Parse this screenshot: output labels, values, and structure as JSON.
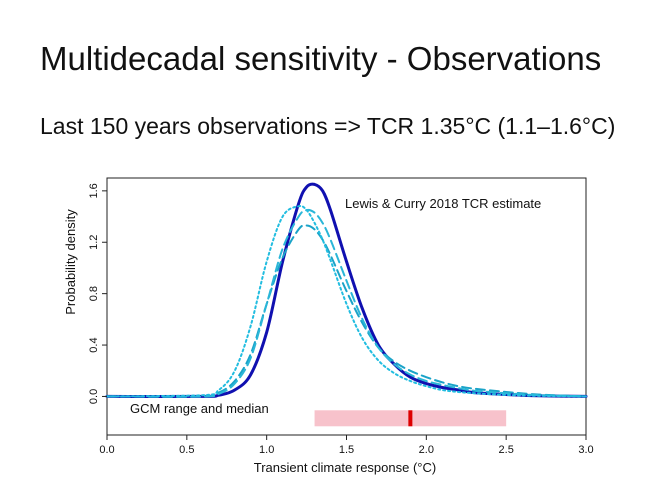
{
  "slide": {
    "title": "Multidecadal sensitivity - Observations",
    "subtitle": "Last 150 years observations => TCR 1.35°C (1.1–1.6°C)"
  },
  "chart_data": {
    "type": "line",
    "xlabel": "Transient climate response (°C)",
    "ylabel": "Probability density",
    "xlim": [
      0,
      3
    ],
    "ylim": [
      -0.3,
      1.7
    ],
    "x_ticks": [
      "0.0",
      "0.5",
      "1.0",
      "1.5",
      "2.0",
      "2.5",
      "3.0"
    ],
    "y_ticks": [
      "0.0",
      "0.4",
      "0.8",
      "1.2",
      "1.6"
    ],
    "grid": false,
    "annotation": "Lewis & Curry 2018 TCR estimate",
    "series": [
      {
        "style": "solid",
        "color": "#1010b0",
        "x": [
          0.0,
          0.6,
          0.7,
          0.8,
          0.9,
          1.0,
          1.1,
          1.2,
          1.25,
          1.3,
          1.35,
          1.4,
          1.5,
          1.6,
          1.7,
          1.8,
          1.9,
          2.0,
          2.1,
          2.2,
          2.3,
          2.5,
          2.7,
          3.0
        ],
        "y": [
          0.0,
          0.0,
          0.01,
          0.05,
          0.17,
          0.5,
          1.05,
          1.5,
          1.63,
          1.65,
          1.6,
          1.45,
          1.05,
          0.68,
          0.4,
          0.25,
          0.15,
          0.1,
          0.07,
          0.05,
          0.03,
          0.015,
          0.005,
          0.0
        ]
      },
      {
        "style": "dashed",
        "color": "#1aa3c8",
        "x": [
          0.0,
          0.6,
          0.7,
          0.8,
          0.9,
          1.0,
          1.1,
          1.2,
          1.25,
          1.3,
          1.35,
          1.4,
          1.5,
          1.6,
          1.7,
          1.8,
          1.9,
          2.0,
          2.1,
          2.2,
          2.3,
          2.5,
          2.7,
          3.0
        ],
        "y": [
          0.0,
          0.0,
          0.03,
          0.12,
          0.33,
          0.72,
          1.08,
          1.3,
          1.33,
          1.3,
          1.22,
          1.1,
          0.82,
          0.57,
          0.38,
          0.27,
          0.2,
          0.15,
          0.11,
          0.08,
          0.06,
          0.035,
          0.015,
          0.0
        ]
      },
      {
        "style": "dashed",
        "color": "#2ab6d8",
        "x": [
          0.0,
          0.6,
          0.7,
          0.8,
          0.9,
          1.0,
          1.1,
          1.2,
          1.25,
          1.3,
          1.35,
          1.4,
          1.5,
          1.6,
          1.7,
          1.8,
          1.9,
          2.0,
          2.1,
          2.2,
          2.3,
          2.5,
          2.7,
          3.0
        ],
        "y": [
          0.0,
          0.0,
          0.02,
          0.1,
          0.3,
          0.72,
          1.15,
          1.4,
          1.45,
          1.43,
          1.35,
          1.22,
          0.9,
          0.6,
          0.38,
          0.25,
          0.17,
          0.12,
          0.09,
          0.065,
          0.045,
          0.025,
          0.01,
          0.0
        ]
      },
      {
        "style": "dotted",
        "color": "#22bde0",
        "x": [
          0.0,
          0.6,
          0.7,
          0.8,
          0.9,
          1.0,
          1.1,
          1.2,
          1.25,
          1.3,
          1.35,
          1.4,
          1.5,
          1.6,
          1.7,
          1.8,
          1.9,
          2.0,
          2.1,
          2.2,
          2.3,
          2.5,
          2.7,
          3.0
        ],
        "y": [
          0.0,
          0.01,
          0.05,
          0.2,
          0.55,
          1.05,
          1.4,
          1.48,
          1.45,
          1.35,
          1.22,
          1.06,
          0.72,
          0.45,
          0.28,
          0.18,
          0.12,
          0.08,
          0.05,
          0.035,
          0.025,
          0.012,
          0.005,
          0.0
        ]
      }
    ],
    "gcm_range": {
      "label": "GCM range and median",
      "min": 1.3,
      "max": 2.5,
      "median": 1.9,
      "y": -0.17,
      "range_color": "#f7c2cb",
      "median_color": "#dd0000"
    }
  }
}
